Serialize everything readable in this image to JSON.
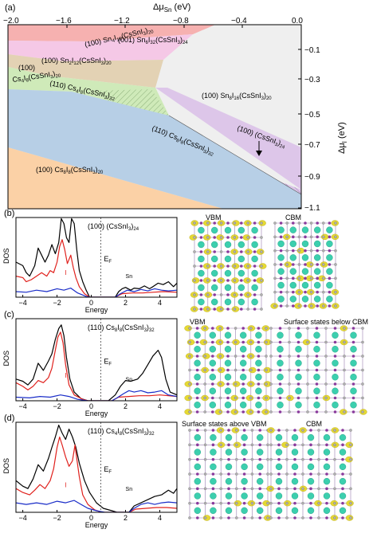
{
  "panel_a": {
    "label": "(a)",
    "x_axis_title": "Δμ",
    "x_axis_sub": "Sn",
    "x_axis_unit": " (eV)",
    "x_ticks": [
      "−2.0",
      "−1.6",
      "−1.2",
      "−0.8",
      "−0.4",
      "0.0"
    ],
    "y_axis_title": "Δμ",
    "y_axis_sub": "I",
    "y_axis_unit": " (eV)",
    "y_ticks": [
      "−0.1",
      "−0.3",
      "−0.5",
      "−0.7",
      "−0.9",
      "−1.1"
    ],
    "region_labels": [
      {
        "main": "(001) Sn",
        "s1": "6",
        "m2": "I",
        "s2": "32",
        "m3": "(CsSnI",
        "s3": "3",
        "m4": ")",
        "s4": "24"
      },
      {
        "main": "(100) Sn",
        "s1": "4",
        "m2": "I",
        "s2": "16",
        "m3": "(CsSnI",
        "s3": "3",
        "m4": ")",
        "s4": "20"
      },
      {
        "main": "(100) Sn",
        "s1": "2",
        "m2": "I",
        "s2": "12",
        "m3": "(CsSnI",
        "s3": "3",
        "m4": ")",
        "s4": "20"
      },
      {
        "main": "(100)",
        "s1": "",
        "m2": "",
        "s2": "",
        "m3": "",
        "s3": "",
        "m4": "",
        "s4": ""
      },
      {
        "main": "Cs",
        "s1": "4",
        "m2": "I",
        "s2": "8",
        "m3": "(CsSnI",
        "s3": "3",
        "m4": ")",
        "s4": "20"
      },
      {
        "main": "(110) Cs",
        "s1": "4",
        "m2": "I",
        "s2": "8",
        "m3": "(CsSnI",
        "s3": "3",
        "m4": ")",
        "s4": "32"
      },
      {
        "main": "(100) Sn",
        "s1": "8",
        "m2": "I",
        "s2": "16",
        "m3": "(CsSnI",
        "s3": "3",
        "m4": ")",
        "s4": "20"
      },
      {
        "main": "(100) (CsSnI",
        "s1": "3",
        "m2": ")",
        "s2": "24",
        "m3": "",
        "s3": "",
        "m4": "",
        "s4": ""
      },
      {
        "main": "(110) Cs",
        "s1": "8",
        "m2": "I",
        "s2": "8",
        "m3": "(CsSnI",
        "s3": "3",
        "m4": ")",
        "s4": "32"
      },
      {
        "main": "(100) Cs",
        "s1": "8",
        "m2": "I",
        "s2": "8",
        "m3": "(CsSnI",
        "s3": "3",
        "m4": ")",
        "s4": "20"
      }
    ],
    "colors": {
      "red": "#f6b1b0",
      "pink": "#f5c8e6",
      "tan": "#e3d2b4",
      "green": "#cfeab9",
      "gray": "#efefef",
      "purple": "#ddc6e9",
      "blue": "#b7cfe6",
      "orange": "#fbd1a6"
    }
  },
  "dos_panels": [
    {
      "label": "(b)",
      "title_a": "(100) (CsSnI",
      "title_s1": "3",
      "title_b": ")",
      "title_s2": "24",
      "ylabel": "DOS",
      "xlabel": "Energy",
      "ef": "E",
      "ef_sub": "F",
      "sn": "Sn",
      "i_mark": "I",
      "x_ticks": [
        "−4",
        "−2",
        "0",
        "2",
        "4"
      ],
      "struct_labels": [
        "VBM",
        "CBM"
      ],
      "total": [
        [
          -4.4,
          0.5
        ],
        [
          -4,
          0.45
        ],
        [
          -3.8,
          0.35
        ],
        [
          -3.6,
          0.3
        ],
        [
          -3.3,
          0.45
        ],
        [
          -3.1,
          0.7
        ],
        [
          -2.9,
          0.6
        ],
        [
          -2.7,
          0.5
        ],
        [
          -2.5,
          0.6
        ],
        [
          -2.3,
          0.75
        ],
        [
          -2.1,
          0.62
        ],
        [
          -1.9,
          0.78
        ],
        [
          -1.75,
          1.15
        ],
        [
          -1.6,
          1.05
        ],
        [
          -1.45,
          0.85
        ],
        [
          -1.3,
          0.78
        ],
        [
          -1.15,
          1.2
        ],
        [
          -1.0,
          1.05
        ],
        [
          -0.85,
          0.68
        ],
        [
          -0.7,
          0.38
        ],
        [
          -0.5,
          0.22
        ],
        [
          -0.3,
          0.1
        ],
        [
          -0.1,
          0
        ],
        [
          1.4,
          0
        ],
        [
          1.6,
          0.08
        ],
        [
          1.8,
          0.12
        ],
        [
          2.0,
          0.14
        ],
        [
          2.3,
          0.1
        ],
        [
          2.5,
          0.13
        ],
        [
          2.8,
          0.12
        ],
        [
          3.1,
          0.16
        ],
        [
          3.4,
          0.12
        ],
        [
          3.6,
          0.15
        ],
        [
          3.9,
          0.2
        ],
        [
          4.2,
          0.18
        ],
        [
          4.5,
          0.22
        ],
        [
          4.8,
          0.15
        ],
        [
          5,
          0.2
        ]
      ],
      "iodine": [
        [
          -4.4,
          0.3
        ],
        [
          -4,
          0.28
        ],
        [
          -3.8,
          0.22
        ],
        [
          -3.5,
          0.25
        ],
        [
          -3.2,
          0.3
        ],
        [
          -2.9,
          0.35
        ],
        [
          -2.6,
          0.3
        ],
        [
          -2.4,
          0.38
        ],
        [
          -2.2,
          0.35
        ],
        [
          -2.0,
          0.5
        ],
        [
          -1.85,
          0.72
        ],
        [
          -1.7,
          0.82
        ],
        [
          -1.55,
          0.68
        ],
        [
          -1.4,
          0.48
        ],
        [
          -1.2,
          0.6
        ],
        [
          -1.05,
          0.42
        ],
        [
          -0.9,
          0.28
        ],
        [
          -0.7,
          0.15
        ],
        [
          -0.4,
          0.05
        ],
        [
          -0.1,
          0
        ],
        [
          1.4,
          0
        ],
        [
          1.8,
          0.05
        ],
        [
          2.4,
          0.06
        ],
        [
          3.0,
          0.06
        ],
        [
          3.6,
          0.07
        ],
        [
          4.2,
          0.08
        ],
        [
          5,
          0.07
        ]
      ],
      "tin": [
        [
          -4.4,
          0.08
        ],
        [
          -3.8,
          0.07
        ],
        [
          -3.2,
          0.1
        ],
        [
          -2.6,
          0.08
        ],
        [
          -2.0,
          0.12
        ],
        [
          -1.6,
          0.1
        ],
        [
          -1.2,
          0.13
        ],
        [
          -0.8,
          0.06
        ],
        [
          -0.3,
          0.01
        ],
        [
          -0.1,
          0
        ],
        [
          1.4,
          0
        ],
        [
          1.7,
          0.05
        ],
        [
          2.1,
          0.1
        ],
        [
          2.5,
          0.08
        ],
        [
          2.9,
          0.11
        ],
        [
          3.3,
          0.09
        ],
        [
          3.7,
          0.12
        ],
        [
          4.1,
          0.1
        ],
        [
          4.5,
          0.09
        ],
        [
          5,
          0.1
        ]
      ]
    },
    {
      "label": "(c)",
      "title_a": "(110) Cs",
      "title_s1": "8",
      "title_b": "I",
      "title_s2": "8",
      "title_c": "(CsSnI",
      "title_s3": "3",
      "title_d": ")",
      "title_s4": "32",
      "ylabel": "DOS",
      "xlabel": "Energy",
      "ef": "E",
      "ef_sub": "F",
      "sn": "Sn",
      "i_mark": "I",
      "x_ticks": [
        "−4",
        "−2",
        "0",
        "2",
        "4"
      ],
      "struct_labels": [
        "VBM",
        "Surface states below CBM"
      ],
      "total": [
        [
          -4.4,
          0.3
        ],
        [
          -4,
          0.27
        ],
        [
          -3.7,
          0.22
        ],
        [
          -3.4,
          0.3
        ],
        [
          -3.1,
          0.52
        ],
        [
          -2.8,
          0.42
        ],
        [
          -2.5,
          0.55
        ],
        [
          -2.3,
          0.65
        ],
        [
          -2.1,
          0.85
        ],
        [
          -1.9,
          1.0
        ],
        [
          -1.75,
          1.05
        ],
        [
          -1.6,
          0.9
        ],
        [
          -1.45,
          0.6
        ],
        [
          -1.25,
          0.3
        ],
        [
          -1.0,
          0.12
        ],
        [
          -0.6,
          0.03
        ],
        [
          -0.2,
          0
        ],
        [
          1.0,
          0
        ],
        [
          1.4,
          0.08
        ],
        [
          1.7,
          0.2
        ],
        [
          2.0,
          0.28
        ],
        [
          2.3,
          0.27
        ],
        [
          2.7,
          0.3
        ],
        [
          3.0,
          0.38
        ],
        [
          3.3,
          0.5
        ],
        [
          3.6,
          0.62
        ],
        [
          3.9,
          0.7
        ],
        [
          4.1,
          0.6
        ],
        [
          4.35,
          0.3
        ],
        [
          4.6,
          0.12
        ],
        [
          5,
          0.08
        ]
      ],
      "iodine": [
        [
          -4.4,
          0.25
        ],
        [
          -4,
          0.2
        ],
        [
          -3.7,
          0.15
        ],
        [
          -3.4,
          0.2
        ],
        [
          -3.1,
          0.28
        ],
        [
          -2.8,
          0.25
        ],
        [
          -2.5,
          0.32
        ],
        [
          -2.3,
          0.45
        ],
        [
          -2.1,
          0.7
        ],
        [
          -1.95,
          0.88
        ],
        [
          -1.8,
          0.95
        ],
        [
          -1.65,
          0.8
        ],
        [
          -1.5,
          0.5
        ],
        [
          -1.3,
          0.22
        ],
        [
          -1.0,
          0.08
        ],
        [
          -0.5,
          0.02
        ],
        [
          -0.2,
          0
        ],
        [
          1.2,
          0
        ],
        [
          1.6,
          0.05
        ],
        [
          2.2,
          0.06
        ],
        [
          2.8,
          0.07
        ],
        [
          3.4,
          0.07
        ],
        [
          4.0,
          0.08
        ],
        [
          5,
          0.06
        ]
      ],
      "tin": [
        [
          -4.4,
          0.05
        ],
        [
          -3.6,
          0.04
        ],
        [
          -3.0,
          0.06
        ],
        [
          -2.4,
          0.05
        ],
        [
          -1.8,
          0.08
        ],
        [
          -1.3,
          0.06
        ],
        [
          -0.8,
          0.02
        ],
        [
          -0.2,
          0
        ],
        [
          1.2,
          0
        ],
        [
          1.5,
          0.04
        ],
        [
          1.9,
          0.1
        ],
        [
          2.2,
          0.14
        ],
        [
          2.5,
          0.12
        ],
        [
          2.9,
          0.14
        ],
        [
          3.3,
          0.11
        ],
        [
          3.7,
          0.12
        ],
        [
          4.1,
          0.14
        ],
        [
          4.5,
          0.08
        ],
        [
          5,
          0.06
        ]
      ]
    },
    {
      "label": "(d)",
      "title_a": "(110) Cs",
      "title_s1": "4",
      "title_b": "I",
      "title_s2": "8",
      "title_c": "(CsSnI",
      "title_s3": "3",
      "title_d": ")",
      "title_s4": "32",
      "ylabel": "DOS",
      "xlabel": "Energy",
      "ef": "E",
      "ef_sub": "F",
      "sn": "Sn",
      "i_mark": "I",
      "x_ticks": [
        "−4",
        "−2",
        "0",
        "2",
        "4"
      ],
      "struct_labels": [
        "Surface states above VBM",
        "CBM"
      ],
      "total": [
        [
          -4.4,
          0.4
        ],
        [
          -4,
          0.33
        ],
        [
          -3.7,
          0.3
        ],
        [
          -3.4,
          0.42
        ],
        [
          -3.1,
          0.6
        ],
        [
          -2.8,
          0.52
        ],
        [
          -2.5,
          0.68
        ],
        [
          -2.3,
          0.82
        ],
        [
          -2.1,
          0.95
        ],
        [
          -1.9,
          1.1
        ],
        [
          -1.7,
          1.0
        ],
        [
          -1.5,
          0.92
        ],
        [
          -1.3,
          1.05
        ],
        [
          -1.1,
          0.95
        ],
        [
          -0.9,
          0.82
        ],
        [
          -0.7,
          0.62
        ],
        [
          -0.4,
          0.4
        ],
        [
          -0.1,
          0.25
        ],
        [
          0.3,
          0.12
        ],
        [
          0.7,
          0.05
        ],
        [
          1.2,
          0.02
        ],
        [
          1.5,
          0
        ],
        [
          2.2,
          0
        ],
        [
          2.5,
          0.08
        ],
        [
          2.9,
          0.12
        ],
        [
          3.3,
          0.16
        ],
        [
          3.7,
          0.2
        ],
        [
          4.1,
          0.22
        ],
        [
          4.5,
          0.28
        ],
        [
          4.8,
          0.24
        ],
        [
          5,
          0.3
        ]
      ],
      "iodine": [
        [
          -4.4,
          0.3
        ],
        [
          -4,
          0.25
        ],
        [
          -3.6,
          0.22
        ],
        [
          -3.3,
          0.28
        ],
        [
          -3.0,
          0.35
        ],
        [
          -2.7,
          0.3
        ],
        [
          -2.4,
          0.4
        ],
        [
          -2.2,
          0.55
        ],
        [
          -2.0,
          0.82
        ],
        [
          -1.85,
          0.95
        ],
        [
          -1.7,
          0.85
        ],
        [
          -1.5,
          0.7
        ],
        [
          -1.3,
          0.58
        ],
        [
          -1.1,
          0.65
        ],
        [
          -0.95,
          0.85
        ],
        [
          -0.85,
          0.68
        ],
        [
          -0.7,
          0.45
        ],
        [
          -0.5,
          0.22
        ],
        [
          -0.2,
          0.1
        ],
        [
          0.2,
          0.03
        ],
        [
          0.6,
          0
        ],
        [
          2.2,
          0
        ],
        [
          2.6,
          0.04
        ],
        [
          3.2,
          0.05
        ],
        [
          3.8,
          0.06
        ],
        [
          4.4,
          0.06
        ],
        [
          5,
          0.05
        ]
      ],
      "tin": [
        [
          -4.4,
          0.12
        ],
        [
          -3.8,
          0.1
        ],
        [
          -3.2,
          0.12
        ],
        [
          -2.6,
          0.1
        ],
        [
          -2.0,
          0.14
        ],
        [
          -1.5,
          0.12
        ],
        [
          -1.0,
          0.15
        ],
        [
          -0.6,
          0.1
        ],
        [
          -0.2,
          0.05
        ],
        [
          0.3,
          0.02
        ],
        [
          0.8,
          0
        ],
        [
          2.2,
          0
        ],
        [
          2.5,
          0.05
        ],
        [
          2.9,
          0.1
        ],
        [
          3.3,
          0.12
        ],
        [
          3.7,
          0.1
        ],
        [
          4.1,
          0.12
        ],
        [
          4.5,
          0.13
        ],
        [
          5,
          0.12
        ]
      ]
    }
  ],
  "structure_colors": {
    "cs": "#3ccfae",
    "i": "#8a3a9c",
    "sn": "#b0b0b0",
    "density": "#e4d61e",
    "density_edge": "#b8a818"
  }
}
